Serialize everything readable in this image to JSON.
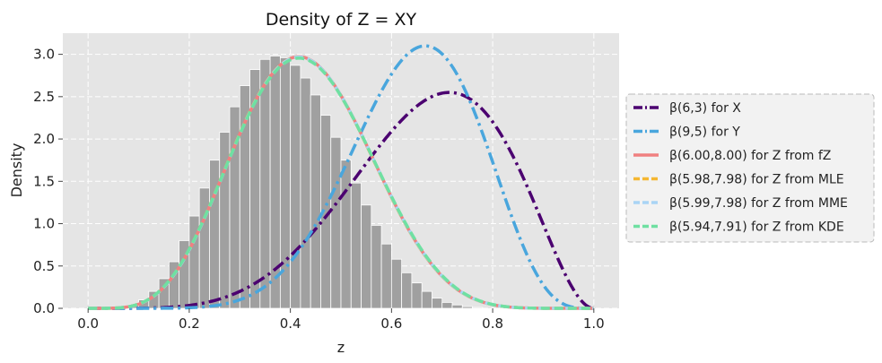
{
  "chart_data": {
    "type": "line",
    "title": "Density of Z = XY",
    "xlabel": "z",
    "ylabel": "Density",
    "xlim": [
      -0.05,
      1.05
    ],
    "ylim": [
      0,
      3.25
    ],
    "x_ticks": [
      "0.0",
      "0.2",
      "0.4",
      "0.6",
      "0.8",
      "1.0"
    ],
    "y_ticks": [
      "0.0",
      "0.5",
      "1.0",
      "1.5",
      "2.0",
      "2.5",
      "3.0"
    ],
    "grid": true,
    "legend_position": "right",
    "histogram": {
      "bin_edges": [
        0.0,
        0.02,
        0.04,
        0.06,
        0.08,
        0.1,
        0.12,
        0.14,
        0.16,
        0.18,
        0.2,
        0.22,
        0.24,
        0.26,
        0.28,
        0.3,
        0.32,
        0.34,
        0.36,
        0.38,
        0.4,
        0.42,
        0.44,
        0.46,
        0.48,
        0.5,
        0.52,
        0.54,
        0.56,
        0.58,
        0.6,
        0.62,
        0.64,
        0.66,
        0.68,
        0.7,
        0.72,
        0.74,
        0.76,
        0.78,
        0.8,
        0.82,
        0.84,
        0.86,
        0.88,
        0.9,
        0.92,
        0.94,
        0.96,
        0.98,
        1.0
      ],
      "counts": [
        0.0,
        0.0,
        0.0,
        0.01,
        0.04,
        0.1,
        0.2,
        0.35,
        0.55,
        0.8,
        1.09,
        1.42,
        1.75,
        2.08,
        2.38,
        2.63,
        2.82,
        2.94,
        2.98,
        2.96,
        2.87,
        2.72,
        2.52,
        2.28,
        2.02,
        1.75,
        1.48,
        1.22,
        0.98,
        0.76,
        0.58,
        0.42,
        0.3,
        0.2,
        0.12,
        0.07,
        0.04,
        0.02,
        0.01,
        0.0,
        0.0,
        0.0,
        0.0,
        0.0,
        0.0,
        0.0,
        0.0,
        0.0,
        0.0,
        0.0
      ],
      "color": "#a0a0a0"
    },
    "series": [
      {
        "name": "β(6,3) for X",
        "a": 6,
        "b": 3,
        "color": "#4b0070",
        "style": "dashdot"
      },
      {
        "name": "β(9,5) for Y",
        "a": 9,
        "b": 5,
        "color": "#49a6dd",
        "style": "dashdot"
      },
      {
        "name": "β(6.00,8.00) for Z from fZ",
        "a": 6.0,
        "b": 8.0,
        "color": "#f08080",
        "style": "solid"
      },
      {
        "name": "β(5.98,7.98) for Z from MLE",
        "a": 5.98,
        "b": 7.98,
        "color": "#f5b731",
        "style": "dashed"
      },
      {
        "name": "β(5.99,7.98) for Z from MME",
        "a": 5.99,
        "b": 7.98,
        "color": "#a9d4f5",
        "style": "dashed"
      },
      {
        "name": "β(5.94,7.91) for Z from KDE",
        "a": 5.94,
        "b": 7.91,
        "color": "#6fe0a2",
        "style": "dashed"
      }
    ]
  }
}
